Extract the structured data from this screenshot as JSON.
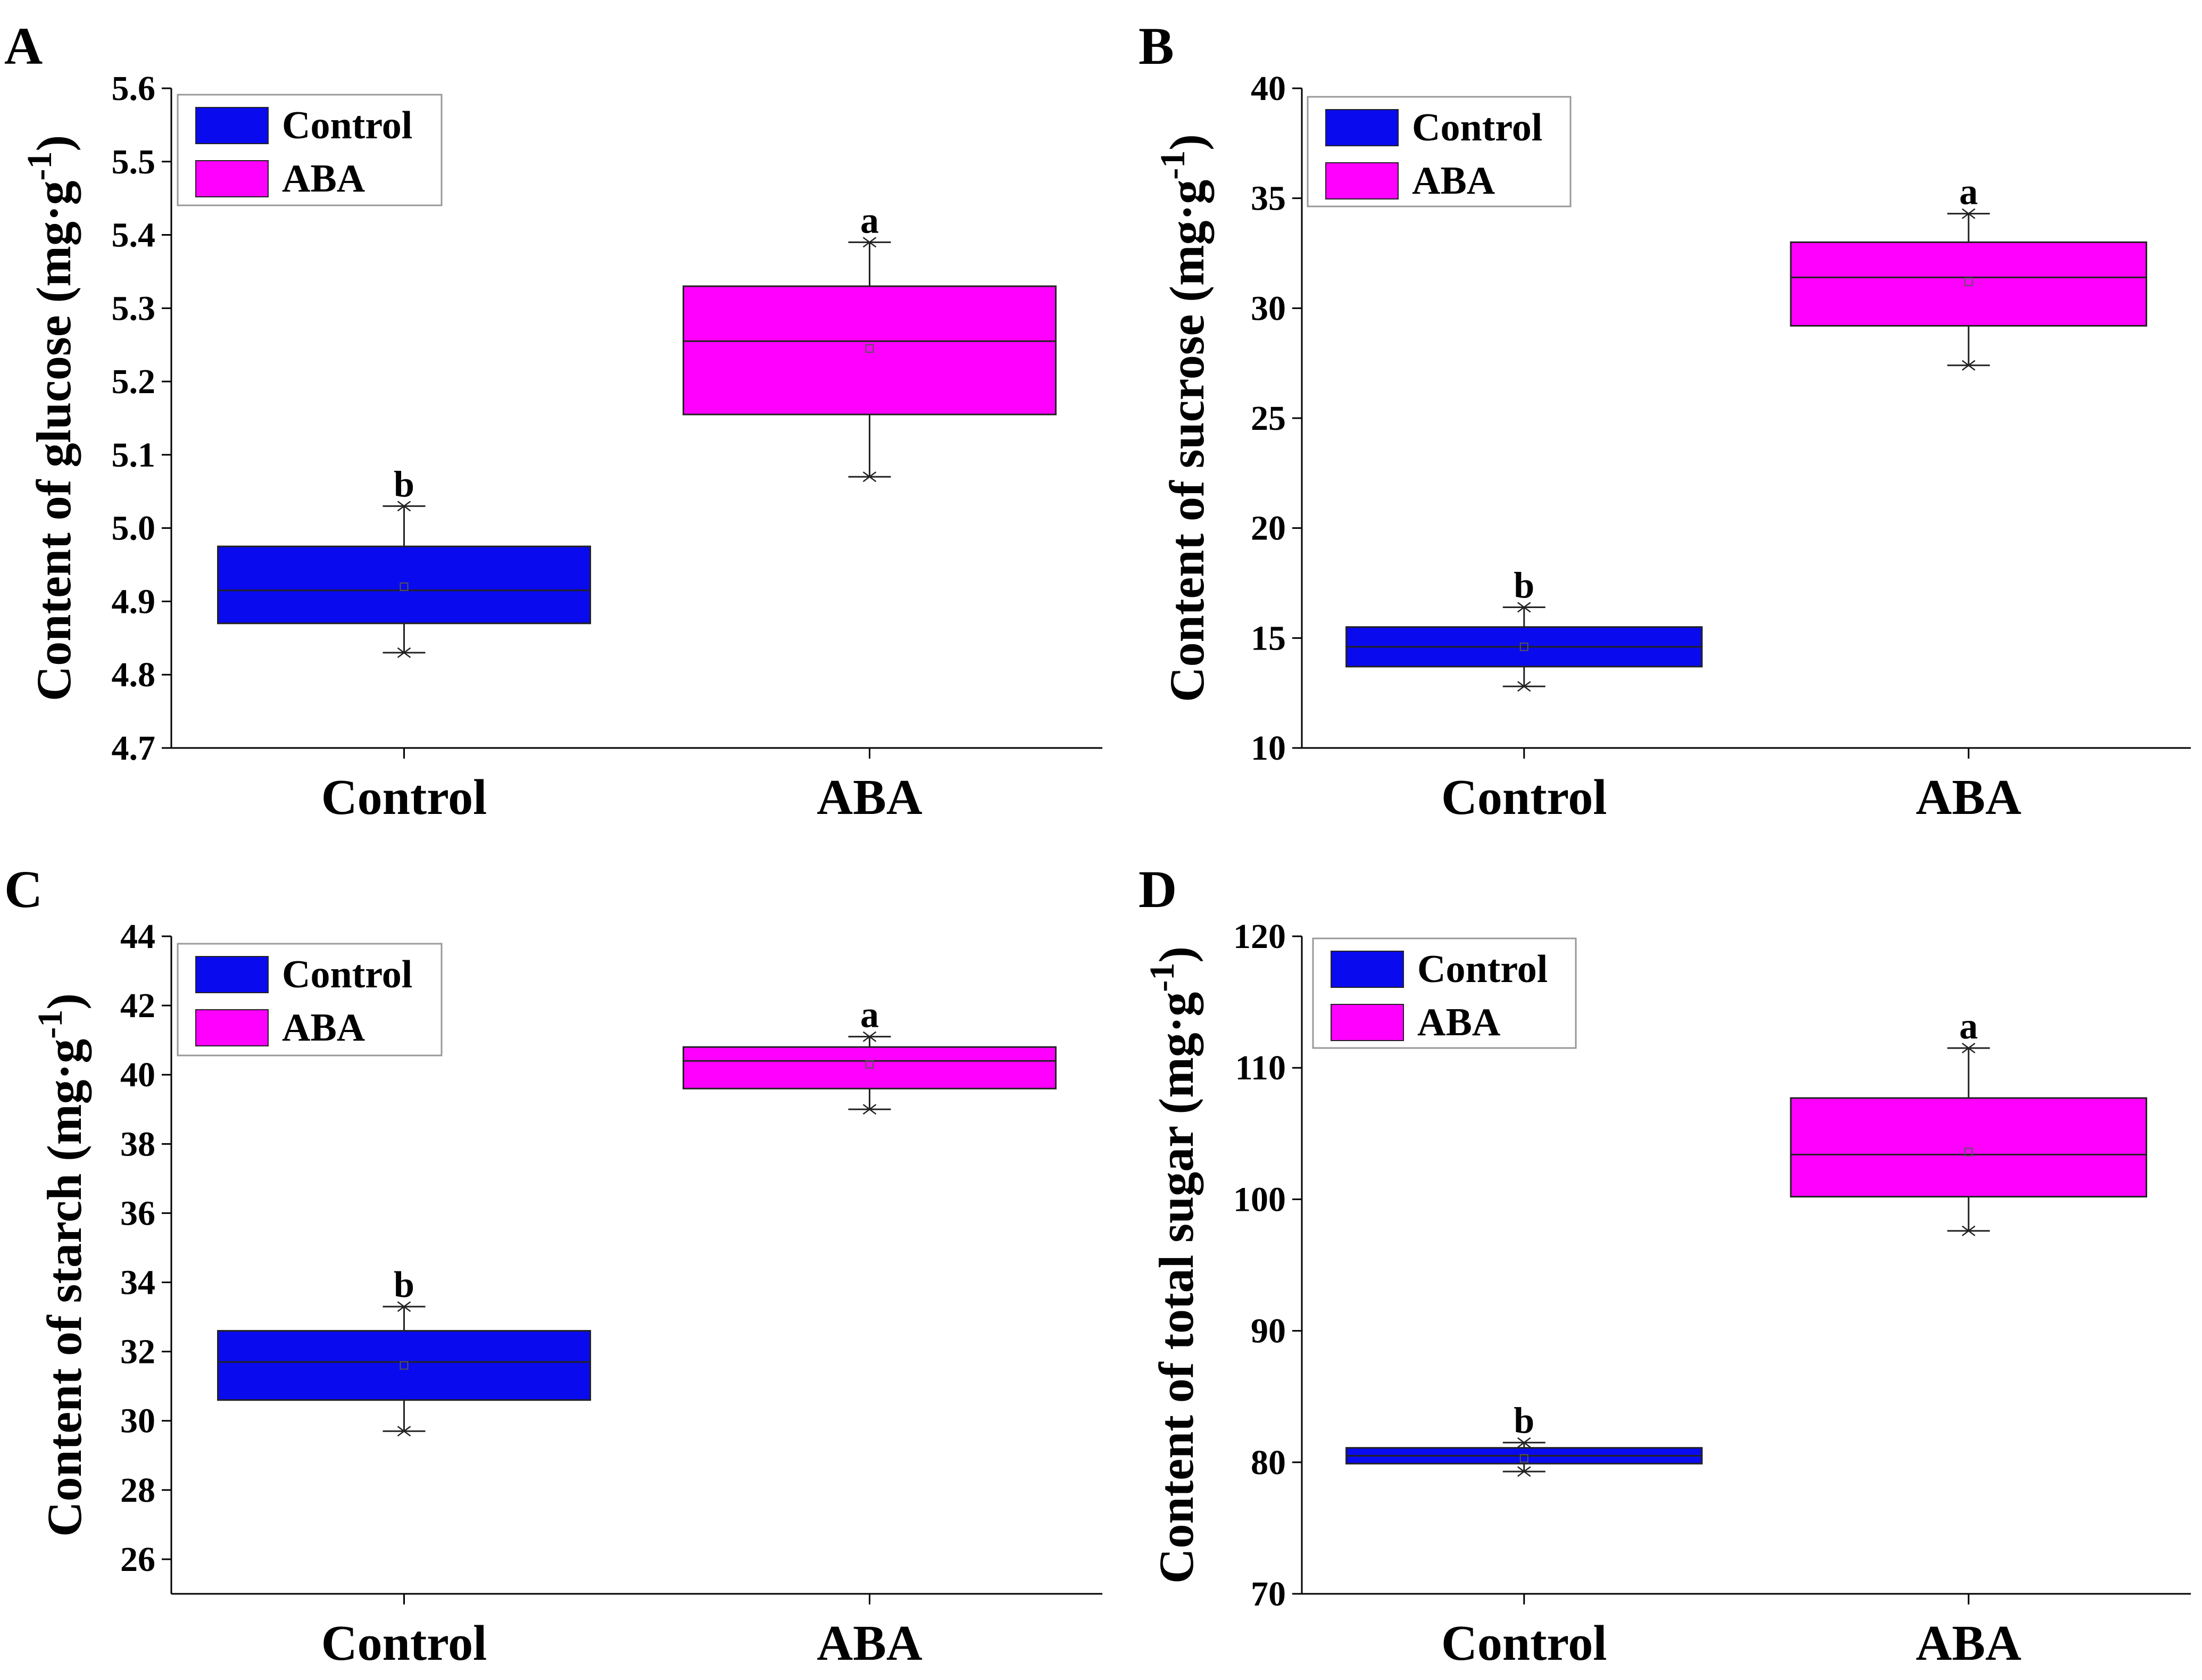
{
  "figure": {
    "legend": {
      "entries": [
        {
          "label": "Control",
          "color": "#0a0aee"
        },
        {
          "label": "ABA",
          "color": "#ff00ff"
        }
      ]
    }
  },
  "chart_data": [
    {
      "type": "box",
      "panel": "A",
      "ylabel_main": "Content of glucose (mg·g",
      "ylabel_sup": "-1",
      "ylabel_tail": ")",
      "ylim": [
        4.7,
        5.6
      ],
      "yticks": [
        4.7,
        4.8,
        4.9,
        5.0,
        5.1,
        5.2,
        5.3,
        5.4,
        5.5,
        5.6
      ],
      "tick_decimals": 1,
      "categories": [
        "Control",
        "ABA"
      ],
      "series": [
        {
          "name": "Control",
          "color": "#0a0aee",
          "min": 4.83,
          "q1": 4.87,
          "median": 4.915,
          "q3": 4.975,
          "max": 5.03,
          "mean": 4.92,
          "sig": "b"
        },
        {
          "name": "ABA",
          "color": "#ff00ff",
          "min": 5.07,
          "q1": 5.155,
          "median": 5.255,
          "q3": 5.33,
          "max": 5.39,
          "mean": 5.245,
          "sig": "a"
        }
      ]
    },
    {
      "type": "box",
      "panel": "B",
      "ylabel_main": "Content of sucrose (mg·g",
      "ylabel_sup": "-1",
      "ylabel_tail": ")",
      "ylim": [
        10,
        40
      ],
      "yticks": [
        10,
        15,
        20,
        25,
        30,
        35,
        40
      ],
      "tick_decimals": 0,
      "categories": [
        "Control",
        "ABA"
      ],
      "series": [
        {
          "name": "Control",
          "color": "#0a0aee",
          "min": 12.8,
          "q1": 13.7,
          "median": 14.6,
          "q3": 15.5,
          "max": 16.4,
          "mean": 14.6,
          "sig": "b"
        },
        {
          "name": "ABA",
          "color": "#ff00ff",
          "min": 27.4,
          "q1": 29.2,
          "median": 31.4,
          "q3": 33.0,
          "max": 34.3,
          "mean": 31.2,
          "sig": "a"
        }
      ]
    },
    {
      "type": "box",
      "panel": "C",
      "ylabel_main": "Content of starch (mg·g",
      "ylabel_sup": "-1",
      "ylabel_tail": ")",
      "ylim": [
        25,
        44
      ],
      "yticks": [
        26,
        28,
        30,
        32,
        34,
        36,
        38,
        40,
        42,
        44
      ],
      "tick_decimals": 0,
      "categories": [
        "Control",
        "ABA"
      ],
      "series": [
        {
          "name": "Control",
          "color": "#0a0aee",
          "min": 29.7,
          "q1": 30.6,
          "median": 31.7,
          "q3": 32.6,
          "max": 33.3,
          "mean": 31.6,
          "sig": "b"
        },
        {
          "name": "ABA",
          "color": "#ff00ff",
          "min": 39.0,
          "q1": 39.6,
          "median": 40.4,
          "q3": 40.8,
          "max": 41.1,
          "mean": 40.3,
          "sig": "a"
        }
      ]
    },
    {
      "type": "box",
      "panel": "D",
      "ylabel_main": "Content of total sugar (mg·g",
      "ylabel_sup": "-1",
      "ylabel_tail": ")",
      "ylim": [
        70,
        120
      ],
      "yticks": [
        70,
        80,
        90,
        100,
        110,
        120
      ],
      "tick_decimals": 0,
      "categories": [
        "Control",
        "ABA"
      ],
      "series": [
        {
          "name": "Control",
          "color": "#0a0aee",
          "min": 79.3,
          "q1": 79.9,
          "median": 80.5,
          "q3": 81.1,
          "max": 81.5,
          "mean": 80.3,
          "sig": "b"
        },
        {
          "name": "ABA",
          "color": "#ff00ff",
          "min": 97.6,
          "q1": 100.2,
          "median": 103.4,
          "q3": 107.7,
          "max": 111.5,
          "mean": 103.6,
          "sig": "a"
        }
      ]
    }
  ]
}
